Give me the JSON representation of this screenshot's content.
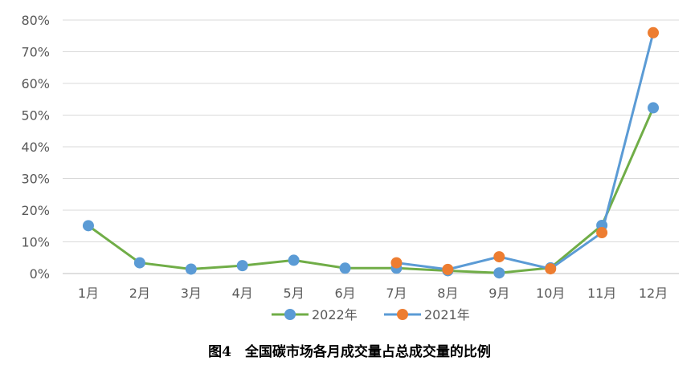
{
  "chart_data": {
    "type": "line",
    "categories": [
      "1月",
      "2月",
      "3月",
      "4月",
      "5月",
      "6月",
      "7月",
      "8月",
      "9月",
      "10月",
      "11月",
      "12月"
    ],
    "ylim": [
      0,
      80
    ],
    "y_ticks": [
      "0%",
      "10%",
      "20%",
      "30%",
      "40%",
      "50%",
      "60%",
      "70%",
      "80%"
    ],
    "grid": true,
    "legend_position": "bottom",
    "series": [
      {
        "name": "2022年",
        "line_color": "#70AD47",
        "marker_color": "#5B9BD5",
        "values": [
          15.1,
          3.4,
          1.4,
          2.5,
          4.2,
          1.7,
          1.7,
          0.9,
          0.2,
          1.8,
          15.2,
          52.3
        ]
      },
      {
        "name": "2021年",
        "line_color": "#5B9BD5",
        "marker_color": "#ED7D31",
        "values": [
          null,
          null,
          null,
          null,
          null,
          null,
          3.4,
          1.3,
          5.3,
          1.5,
          12.9,
          76.0
        ]
      }
    ]
  },
  "caption": "图4　全国碳市场各月成交量占总成交量的比例"
}
